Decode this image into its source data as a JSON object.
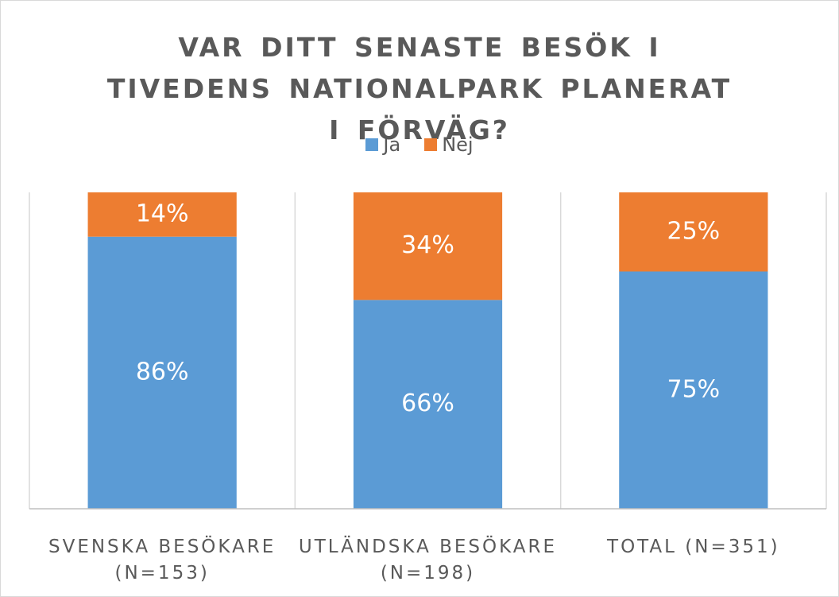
{
  "chart_data": {
    "type": "stacked_bar",
    "title": "VAR DITT SENASTE BESÖK I TIVEDENS NATIONALPARK PLANERAT I FÖRVÄG?",
    "categories": [
      "SVENSKA BESÖKARE (N=153)",
      "UTLÄNDSKA BESÖKARE (N=198)",
      "TOTAL (N=351)"
    ],
    "series": [
      {
        "name": "Ja",
        "color": "#5b9bd5",
        "values": [
          86,
          66,
          75
        ],
        "value_labels": [
          "86%",
          "66%",
          "75%"
        ]
      },
      {
        "name": "Nej",
        "color": "#ed7d31",
        "values": [
          14,
          34,
          25
        ],
        "value_labels": [
          "14%",
          "34%",
          "25%"
        ]
      }
    ],
    "ylim": [
      0,
      100
    ],
    "legend": "top"
  }
}
